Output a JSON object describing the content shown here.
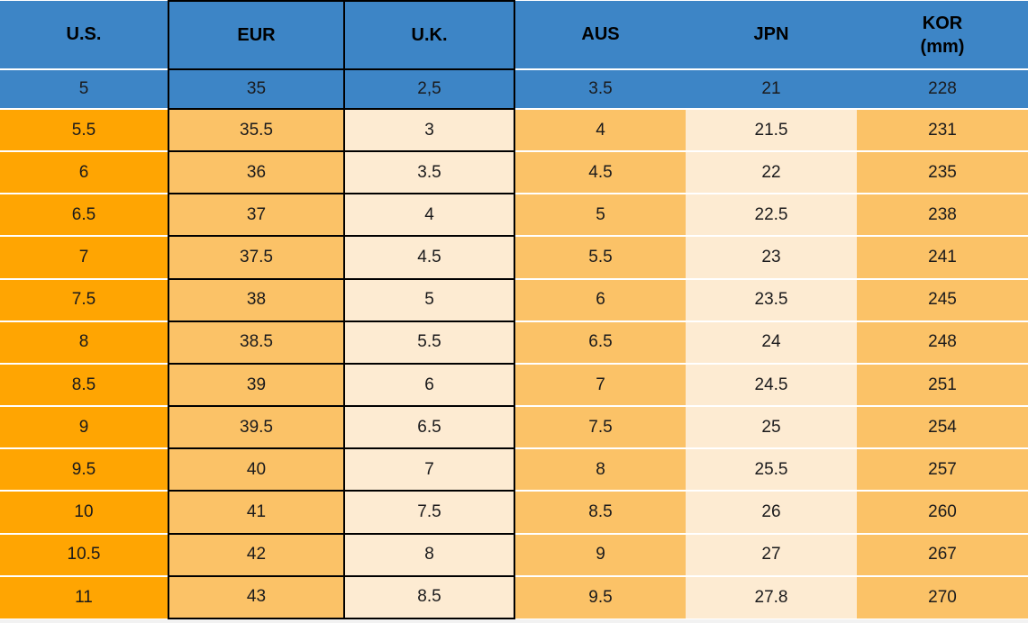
{
  "chart_data": {
    "type": "table",
    "columns": [
      {
        "label": "U.S."
      },
      {
        "label": "EUR"
      },
      {
        "label": "U.K."
      },
      {
        "label": "AUS"
      },
      {
        "label": "JPN"
      },
      {
        "label": "KOR",
        "sublabel": "(mm)"
      }
    ],
    "rows": [
      [
        "5",
        "35",
        "2,5",
        "3.5",
        "21",
        "228"
      ],
      [
        "5.5",
        "35.5",
        "3",
        "4",
        "21.5",
        "231"
      ],
      [
        "6",
        "36",
        "3.5",
        "4.5",
        "22",
        "235"
      ],
      [
        "6.5",
        "37",
        "4",
        "5",
        "22.5",
        "238"
      ],
      [
        "7",
        "37.5",
        "4.5",
        "5.5",
        "23",
        "241"
      ],
      [
        "7.5",
        "38",
        "5",
        "6",
        "23.5",
        "245"
      ],
      [
        "8",
        "38.5",
        "5.5",
        "6.5",
        "24",
        "248"
      ],
      [
        "8.5",
        "39",
        "6",
        "7",
        "24.5",
        "251"
      ],
      [
        "9",
        "39.5",
        "6.5",
        "7.5",
        "25",
        "254"
      ],
      [
        "9.5",
        "40",
        "7",
        "8",
        "25.5",
        "257"
      ],
      [
        "10",
        "41",
        "7.5",
        "8.5",
        "26",
        "260"
      ],
      [
        "10.5",
        "42",
        "8",
        "9",
        "27",
        "267"
      ],
      [
        "11",
        "43",
        "8.5",
        "9.5",
        "27.8",
        "270"
      ]
    ],
    "layout_hints": {
      "highlighted_row_index": 0,
      "black_bordered_columns": [
        "EUR",
        "U.K."
      ]
    }
  },
  "colors": {
    "header_blue": "#3D85C6",
    "us_orange": "#FFA502",
    "light_orange": "#FBC267",
    "cream": "#FDEBD2",
    "border_black": "#000000",
    "separator_white": "#FFFFFF",
    "text_dark": "#1A1A1C",
    "bottom_strip": "#F2F2F2"
  }
}
